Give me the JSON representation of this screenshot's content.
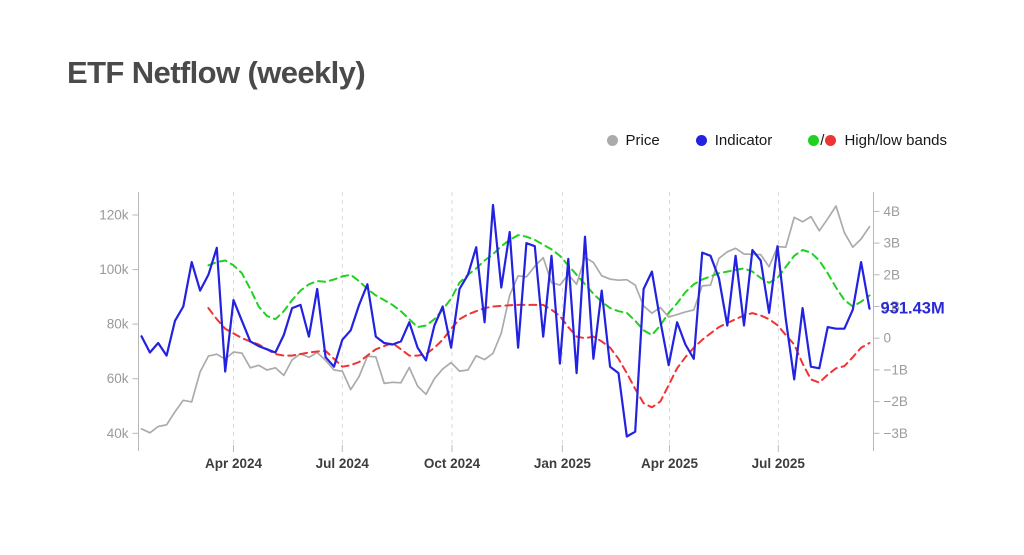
{
  "header": {
    "title": "ETF Netflow (weekly)"
  },
  "legend": {
    "separator": "/",
    "items": [
      {
        "label": "Price",
        "color": "#ababab"
      },
      {
        "label": "Indicator",
        "color": "#2222e0"
      },
      {
        "label": "High/low bands",
        "color_high": "#21d121",
        "color_low": "#ef3434"
      }
    ]
  },
  "annotation": {
    "last_value_label": "931.43M",
    "color": "#2929d6"
  },
  "chart_data": {
    "type": "line",
    "title": "ETF Netflow (weekly)",
    "x_unit": "week",
    "grid": "vertical-dashed-only",
    "legend_position": "top-right",
    "x_ticks": [
      {
        "label": "Apr 2024",
        "week_index": 11.0
      },
      {
        "label": "Jul 2024",
        "week_index": 24.0
      },
      {
        "label": "Oct 2024",
        "week_index": 37.1
      },
      {
        "label": "Jan 2025",
        "week_index": 50.3
      },
      {
        "label": "Apr 2025",
        "week_index": 63.1
      },
      {
        "label": "Jul 2025",
        "week_index": 76.1
      }
    ],
    "axes": {
      "left": {
        "unit": "k",
        "range": [
          40,
          120
        ],
        "ticks": [
          {
            "label": "40k",
            "value": 40
          },
          {
            "label": "60k",
            "value": 60
          },
          {
            "label": "80k",
            "value": 80
          },
          {
            "label": "100k",
            "value": 100
          },
          {
            "label": "120k",
            "value": 120
          }
        ]
      },
      "right": {
        "unit": "B",
        "range": [
          -3,
          4
        ],
        "ticks": [
          {
            "label": "4B",
            "value": 4
          },
          {
            "label": "3B",
            "value": 3
          },
          {
            "label": "2B",
            "value": 2
          },
          {
            "label": "1B",
            "value": 1
          },
          {
            "label": "0",
            "value": 0
          },
          {
            "label": "−1B",
            "value": -1
          },
          {
            "label": "−2B",
            "value": -2
          },
          {
            "label": "−3B",
            "value": -3
          }
        ]
      }
    },
    "last_indicator_value": "931.43M",
    "series": [
      {
        "name": "Price",
        "axis": "left",
        "unit": "thousand USD",
        "color": "#ababab",
        "style": "solid",
        "width": 1.7,
        "values": [
          41.6,
          40.2,
          42.5,
          43.1,
          47.9,
          52.1,
          51.5,
          62.5,
          68.3,
          69.0,
          67.2,
          69.8,
          69.4,
          64.0,
          64.9,
          63.2,
          64.0,
          61.2,
          66.9,
          69.2,
          67.8,
          69.6,
          66.7,
          63.2,
          62.8,
          56.0,
          60.8,
          68.2,
          68.0,
          58.3,
          58.7,
          58.5,
          64.1,
          57.3,
          54.3,
          60.0,
          63.6,
          65.9,
          62.8,
          63.2,
          68.4,
          67.0,
          69.3,
          76.7,
          90.6,
          97.7,
          97.3,
          101.2,
          104.4,
          95.2,
          94.3,
          98.2,
          94.6,
          104.5,
          102.6,
          97.7,
          96.5,
          96.1,
          96.3,
          94.3,
          86.7,
          84.0,
          86.1,
          82.6,
          83.5,
          84.5,
          85.2,
          94.0,
          94.3,
          104.1,
          106.5,
          107.8,
          105.7,
          105.6,
          105.5,
          101.0,
          108.4,
          108.2,
          119.1,
          117.5,
          119.4,
          114.2,
          118.6,
          123.3,
          113.5,
          108.2,
          111.2,
          115.7
        ]
      },
      {
        "name": "Indicator",
        "axis": "right",
        "unit": "billion USD",
        "color": "#2222e0",
        "style": "solid",
        "width": 2.2,
        "values": [
          0.06,
          -0.45,
          -0.15,
          -0.55,
          0.55,
          1.0,
          2.4,
          1.5,
          2.0,
          2.85,
          -1.05,
          1.2,
          0.55,
          -0.1,
          -0.25,
          -0.35,
          -0.45,
          0.1,
          0.95,
          1.05,
          0.05,
          1.55,
          -0.6,
          -0.9,
          -0.05,
          0.25,
          1.05,
          1.7,
          0.05,
          -0.15,
          -0.2,
          -0.1,
          0.5,
          -0.3,
          -0.7,
          0.4,
          1.0,
          -0.3,
          1.55,
          2.0,
          2.87,
          0.5,
          4.2,
          1.6,
          3.35,
          -0.3,
          3.0,
          2.9,
          0.05,
          2.6,
          -0.8,
          2.5,
          -1.1,
          3.2,
          -0.65,
          1.5,
          -0.9,
          -1.1,
          -3.1,
          -2.95,
          1.55,
          2.1,
          0.55,
          -0.85,
          0.5,
          -0.2,
          -0.65,
          2.7,
          2.6,
          1.9,
          0.4,
          2.6,
          0.4,
          2.78,
          2.45,
          0.8,
          2.9,
          0.6,
          -1.3,
          0.95,
          -0.9,
          -0.95,
          0.35,
          0.3,
          0.3,
          0.9,
          2.4,
          0.93143
        ]
      },
      {
        "name": "High band",
        "axis": "right",
        "unit": "billion USD",
        "color": "#21d121",
        "style": "dashed",
        "width": 2,
        "values": [
          null,
          null,
          null,
          null,
          null,
          null,
          null,
          null,
          2.3,
          2.4,
          2.45,
          2.3,
          2.05,
          1.55,
          1.0,
          0.7,
          0.6,
          0.85,
          1.2,
          1.5,
          1.7,
          1.8,
          1.78,
          1.85,
          1.95,
          2.0,
          1.8,
          1.55,
          1.35,
          1.2,
          1.05,
          0.85,
          0.6,
          0.35,
          0.4,
          0.6,
          0.9,
          1.25,
          1.75,
          2.0,
          2.2,
          2.45,
          2.65,
          2.9,
          3.1,
          3.25,
          3.2,
          3.1,
          2.95,
          2.8,
          2.6,
          2.3,
          2.0,
          1.7,
          1.4,
          1.15,
          0.95,
          0.85,
          0.8,
          0.55,
          0.25,
          0.1,
          0.4,
          0.8,
          1.1,
          1.45,
          1.7,
          1.85,
          1.95,
          2.05,
          2.1,
          2.15,
          2.2,
          2.1,
          1.9,
          1.75,
          1.9,
          2.25,
          2.6,
          2.78,
          2.7,
          2.45,
          2.05,
          1.6,
          1.2,
          1.0,
          1.15,
          1.35
        ]
      },
      {
        "name": "Low band",
        "axis": "right",
        "unit": "billion USD",
        "color": "#ef3434",
        "style": "dashed",
        "width": 2,
        "values": [
          null,
          null,
          null,
          null,
          null,
          null,
          null,
          null,
          0.95,
          0.6,
          0.3,
          0.15,
          0.0,
          -0.1,
          -0.2,
          -0.35,
          -0.5,
          -0.55,
          -0.55,
          -0.5,
          -0.45,
          -0.42,
          -0.4,
          -0.65,
          -0.9,
          -0.85,
          -0.75,
          -0.55,
          -0.35,
          -0.25,
          -0.15,
          -0.35,
          -0.55,
          -0.55,
          -0.5,
          -0.3,
          -0.05,
          0.3,
          0.6,
          0.75,
          0.85,
          0.95,
          1.0,
          1.02,
          1.04,
          1.05,
          1.05,
          1.05,
          1.05,
          0.9,
          0.7,
          0.35,
          0.05,
          0.0,
          0.05,
          -0.1,
          -0.3,
          -0.65,
          -1.1,
          -1.6,
          -2.05,
          -2.18,
          -2.0,
          -1.48,
          -0.95,
          -0.6,
          -0.3,
          -0.05,
          0.15,
          0.35,
          0.48,
          0.6,
          0.72,
          0.79,
          0.72,
          0.6,
          0.41,
          0.1,
          -0.2,
          -0.8,
          -1.3,
          -1.4,
          -1.15,
          -0.95,
          -0.88,
          -0.6,
          -0.3,
          -0.15
        ]
      }
    ]
  }
}
